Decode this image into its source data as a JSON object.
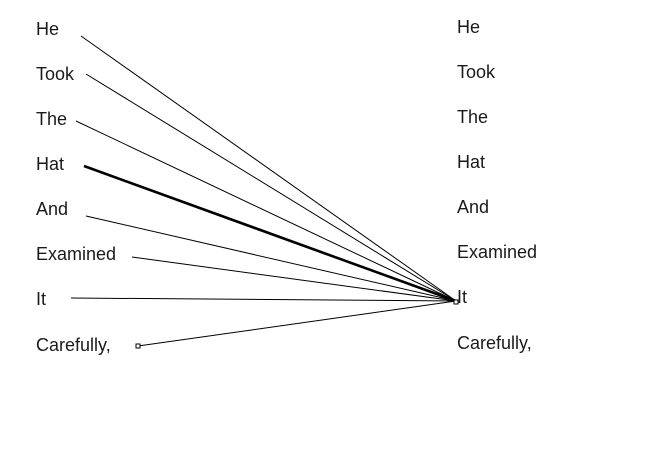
{
  "left_words": [
    "He",
    "Took",
    "The",
    "Hat",
    "And",
    "Examined",
    "It",
    "Carefully,"
  ],
  "right_words": [
    "He",
    "Took",
    "The",
    "Hat",
    "And",
    "Examined",
    "It",
    "Carefully,"
  ],
  "links": [
    {
      "from": "He",
      "to": "It",
      "emphasis": false
    },
    {
      "from": "Took",
      "to": "It",
      "emphasis": false
    },
    {
      "from": "The",
      "to": "It",
      "emphasis": false
    },
    {
      "from": "Hat",
      "to": "It",
      "emphasis": true
    },
    {
      "from": "And",
      "to": "It",
      "emphasis": false
    },
    {
      "from": "Examined",
      "to": "It",
      "emphasis": false
    },
    {
      "from": "It",
      "to": "It",
      "emphasis": false
    },
    {
      "from": "Carefully,",
      "to": "It",
      "emphasis": false
    }
  ],
  "colors": {
    "line": "#000000",
    "text": "#1a1a1a",
    "background": "#ffffff"
  }
}
